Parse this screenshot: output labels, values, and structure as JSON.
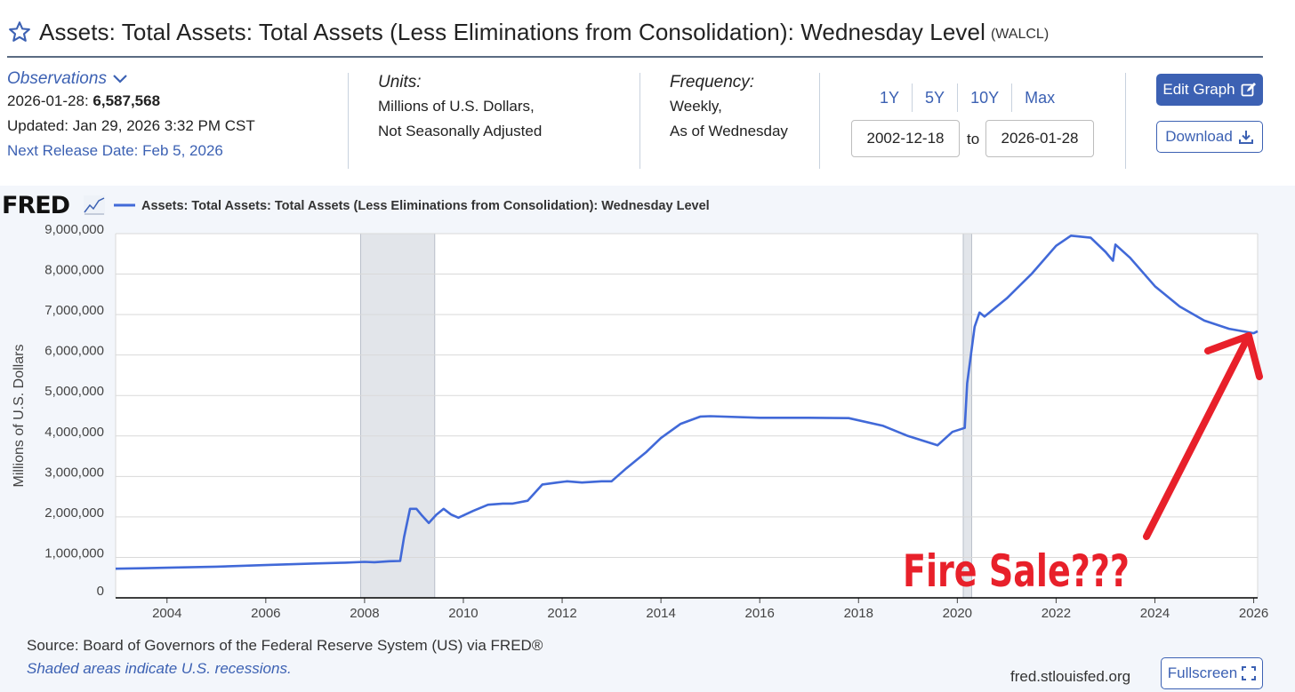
{
  "header": {
    "title": "Assets: Total Assets: Total Assets (Less Eliminations from Consolidation): Wednesday Level",
    "series_id": "(WALCL)",
    "star_icon": "star-outline-icon"
  },
  "observations": {
    "label": "Observations",
    "latest_date": "2026-01-28:",
    "latest_value": "6,587,568",
    "updated": "Updated: Jan 29, 2026 3:32 PM CST",
    "next_release": "Next Release Date: Feb 5, 2026"
  },
  "units": {
    "label": "Units:",
    "line1": "Millions of U.S. Dollars,",
    "line2": "Not Seasonally Adjusted"
  },
  "frequency": {
    "label": "Frequency:",
    "line1": "Weekly,",
    "line2": "As of Wednesday"
  },
  "range": {
    "buttons": [
      "1Y",
      "5Y",
      "10Y",
      "Max"
    ],
    "start": "2002-12-18",
    "to_label": "to",
    "end": "2026-01-28"
  },
  "actions": {
    "edit_graph": "Edit Graph",
    "download": "Download",
    "fullscreen": "Fullscreen"
  },
  "footer": {
    "source": "Source: Board of Governors of the Federal Reserve System (US) via FRED®",
    "shaded_note": "Shaded areas indicate U.S. recessions.",
    "site": "fred.stlouisfed.org"
  },
  "logo_text": "FRED",
  "annotation": {
    "text": "Fire Sale???",
    "color": "#e8202a"
  },
  "colors": {
    "accent": "#3c61b3",
    "series_line": "#4169d8",
    "recession_shade": "#e2e5ea",
    "annotation": "#e8202a"
  },
  "chart_data": {
    "type": "line",
    "legend": "Assets: Total Assets: Total Assets (Less Eliminations from Consolidation): Wednesday Level",
    "ylabel": "Millions of U.S. Dollars",
    "xlim": [
      2002.96,
      2026.08
    ],
    "ylim": [
      0,
      9000000
    ],
    "yticks": [
      0,
      1000000,
      2000000,
      3000000,
      4000000,
      5000000,
      6000000,
      7000000,
      8000000,
      9000000
    ],
    "ytick_labels": [
      "0",
      "1,000,000",
      "2,000,000",
      "3,000,000",
      "4,000,000",
      "5,000,000",
      "6,000,000",
      "7,000,000",
      "8,000,000",
      "9,000,000"
    ],
    "xticks": [
      2004,
      2006,
      2008,
      2010,
      2012,
      2014,
      2016,
      2018,
      2020,
      2022,
      2024,
      2026
    ],
    "xtick_labels": [
      "2004",
      "2006",
      "2008",
      "2010",
      "2012",
      "2014",
      "2016",
      "2018",
      "2020",
      "2022",
      "2024",
      "2026"
    ],
    "recessions": [
      [
        2007.92,
        2009.42
      ],
      [
        2020.12,
        2020.29
      ]
    ],
    "grid": true,
    "series": [
      {
        "name": "WALCL",
        "points": [
          [
            2002.96,
            720000
          ],
          [
            2003.5,
            730000
          ],
          [
            2004.0,
            745000
          ],
          [
            2005.0,
            770000
          ],
          [
            2006.0,
            810000
          ],
          [
            2007.0,
            850000
          ],
          [
            2007.6,
            870000
          ],
          [
            2008.0,
            890000
          ],
          [
            2008.2,
            880000
          ],
          [
            2008.5,
            905000
          ],
          [
            2008.72,
            910000
          ],
          [
            2008.8,
            1500000
          ],
          [
            2008.92,
            2200000
          ],
          [
            2009.05,
            2200000
          ],
          [
            2009.15,
            2050000
          ],
          [
            2009.3,
            1850000
          ],
          [
            2009.45,
            2050000
          ],
          [
            2009.6,
            2200000
          ],
          [
            2009.75,
            2060000
          ],
          [
            2009.9,
            1980000
          ],
          [
            2010.2,
            2150000
          ],
          [
            2010.5,
            2300000
          ],
          [
            2010.8,
            2330000
          ],
          [
            2011.0,
            2330000
          ],
          [
            2011.3,
            2400000
          ],
          [
            2011.6,
            2800000
          ],
          [
            2011.9,
            2850000
          ],
          [
            2012.1,
            2880000
          ],
          [
            2012.4,
            2850000
          ],
          [
            2012.8,
            2880000
          ],
          [
            2013.0,
            2880000
          ],
          [
            2013.3,
            3200000
          ],
          [
            2013.7,
            3600000
          ],
          [
            2014.0,
            3950000
          ],
          [
            2014.4,
            4300000
          ],
          [
            2014.8,
            4480000
          ],
          [
            2015.0,
            4490000
          ],
          [
            2016.0,
            4450000
          ],
          [
            2017.0,
            4450000
          ],
          [
            2017.8,
            4440000
          ],
          [
            2018.5,
            4250000
          ],
          [
            2019.0,
            4000000
          ],
          [
            2019.6,
            3770000
          ],
          [
            2019.9,
            4100000
          ],
          [
            2020.15,
            4200000
          ],
          [
            2020.2,
            5300000
          ],
          [
            2020.35,
            6700000
          ],
          [
            2020.45,
            7050000
          ],
          [
            2020.55,
            6950000
          ],
          [
            2021.0,
            7400000
          ],
          [
            2021.5,
            8000000
          ],
          [
            2022.0,
            8700000
          ],
          [
            2022.3,
            8950000
          ],
          [
            2022.7,
            8900000
          ],
          [
            2023.0,
            8550000
          ],
          [
            2023.15,
            8330000
          ],
          [
            2023.2,
            8730000
          ],
          [
            2023.5,
            8400000
          ],
          [
            2024.0,
            7700000
          ],
          [
            2024.5,
            7200000
          ],
          [
            2025.0,
            6850000
          ],
          [
            2025.5,
            6650000
          ],
          [
            2026.0,
            6540000
          ],
          [
            2026.08,
            6587568
          ]
        ]
      }
    ]
  }
}
